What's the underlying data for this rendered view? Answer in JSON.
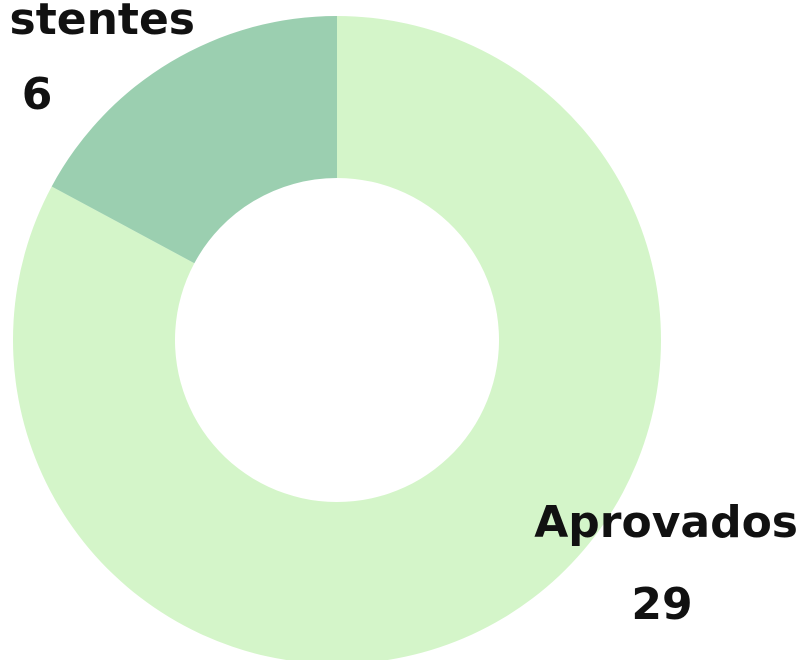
{
  "chart_data": {
    "type": "donut",
    "categories": [
      "Aprovados",
      "stentes"
    ],
    "values": [
      29,
      6
    ],
    "colors": [
      "#d4f5c9",
      "#9bcfb0"
    ]
  }
}
